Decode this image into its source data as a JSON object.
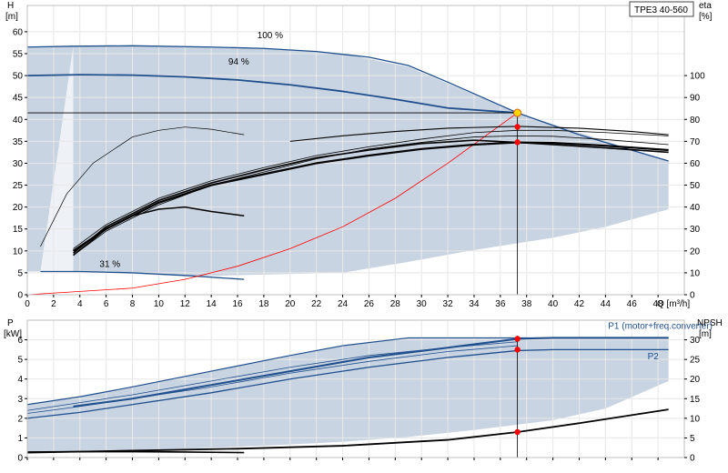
{
  "model_label": "TPE3 40-560",
  "colors": {
    "envelope": "#c8d4e2",
    "blue": "#1f4e8c",
    "black": "#000000",
    "red_curve": "#ff0000",
    "dutypoint": "#ff0000",
    "dutypoint_main": "#ffd700"
  },
  "chart_data": [
    {
      "type": "line",
      "panel": "top",
      "y_left_title": "H",
      "y_left_unit": "[m]",
      "y_right_title": "eta",
      "y_right_unit": "[%]",
      "x_title": "Q [m³/h]",
      "xlim": [
        0,
        50
      ],
      "ylim": [
        0,
        66
      ],
      "y_right_lim": [
        0,
        132
      ],
      "x_ticks": [
        0,
        2,
        4,
        6,
        8,
        10,
        12,
        14,
        16,
        18,
        20,
        22,
        24,
        26,
        28,
        30,
        32,
        34,
        36,
        38,
        40,
        42,
        44,
        46,
        48
      ],
      "y_ticks": [
        0,
        5,
        10,
        15,
        20,
        25,
        30,
        35,
        40,
        45,
        50,
        55,
        60
      ],
      "y_right_ticks": [
        0,
        10,
        20,
        30,
        40,
        50,
        60,
        70,
        80,
        90,
        100
      ],
      "curve_labels": [
        {
          "text": "100 %",
          "x": 17.5,
          "y": 58.5
        },
        {
          "text": "94 %",
          "x": 15.3,
          "y": 52.5
        },
        {
          "text": "31 %",
          "x": 5.5,
          "y": 6.3
        }
      ],
      "series": [
        {
          "role": "envelope",
          "x": [
            0,
            3.5,
            8,
            18,
            24,
            29,
            37.3,
            48.8,
            48.8,
            44,
            40,
            34,
            29,
            24,
            18,
            12,
            4,
            1,
            0
          ],
          "y": [
            56.5,
            56.7,
            56.8,
            56.2,
            55,
            52,
            41.5,
            30.5,
            19.5,
            15.5,
            13,
            10.2,
            7.5,
            5,
            4.6,
            4.2,
            5.3,
            5.3,
            5.3
          ]
        },
        {
          "role": "lightwedge",
          "x": [
            1,
            3.5,
            3.5,
            1
          ],
          "y": [
            5.3,
            56.7,
            5.3,
            5.3
          ]
        },
        {
          "role": "h100",
          "x": [
            0,
            3.5,
            8,
            14,
            18,
            22,
            26,
            29,
            32,
            37.3,
            42,
            48.8
          ],
          "y": [
            56.5,
            56.7,
            56.8,
            56.5,
            56.2,
            55.5,
            54.2,
            52.3,
            48.5,
            41.5,
            36.5,
            30.5
          ]
        },
        {
          "role": "h94",
          "x": [
            0,
            4,
            8,
            12,
            16,
            20,
            24,
            28,
            32,
            37.3
          ],
          "y": [
            50,
            50.2,
            50.1,
            49.7,
            49,
            47.9,
            46.4,
            44.6,
            42.6,
            41.5
          ]
        },
        {
          "role": "h31",
          "x": [
            1,
            4,
            8,
            12,
            16.5
          ],
          "y": [
            5.3,
            5.3,
            5,
            4.4,
            3.5
          ]
        },
        {
          "role": "sysline",
          "x": [
            0,
            8,
            12,
            16,
            20,
            24,
            28,
            32,
            37.3
          ],
          "y": [
            0,
            1.5,
            3.5,
            6.5,
            10.5,
            15.5,
            22,
            30,
            41.5
          ]
        },
        {
          "role": "dutyH",
          "x": [
            0,
            37.3
          ],
          "y": [
            41.5,
            41.5
          ]
        },
        {
          "role": "dutyV",
          "x": [
            37.3,
            37.3
          ],
          "y": [
            0,
            41.5
          ]
        },
        {
          "role": "eta_main",
          "x": [
            3.5,
            6,
            10,
            14,
            18,
            22,
            26,
            30,
            34,
            37.3,
            40,
            44,
            48.8
          ],
          "y": [
            20,
            30,
            42,
            50,
            55,
            60,
            63.5,
            66.5,
            68.5,
            69.5,
            69.3,
            68,
            66
          ]
        },
        {
          "role": "eta_low1",
          "x": [
            3.5,
            6,
            8,
            10,
            12,
            14,
            16.5
          ],
          "y": [
            18,
            30,
            36,
            39,
            40,
            38,
            36
          ]
        },
        {
          "role": "eta_thin1",
          "x": [
            3.5,
            6,
            10,
            14,
            18,
            22,
            26,
            30,
            34,
            37.3,
            40,
            44,
            48.8
          ],
          "y": [
            18,
            29,
            41,
            50,
            56,
            62,
            66.5,
            69.5,
            72,
            72.5,
            72.3,
            70.8,
            68.5
          ]
        },
        {
          "role": "eta_thin2",
          "x": [
            3.5,
            6,
            10,
            14,
            18,
            22,
            26,
            30,
            34,
            37.3,
            40,
            44,
            48.8
          ],
          "y": [
            21,
            32,
            44,
            52,
            58,
            63.5,
            67.5,
            71,
            74,
            75,
            75,
            74,
            72.5
          ]
        },
        {
          "role": "eta_bold_b",
          "x": [
            3.5,
            6,
            10,
            14,
            18,
            22,
            26,
            30,
            34,
            37.3,
            40,
            44,
            48.8
          ],
          "y": [
            19,
            31,
            43,
            51,
            57,
            62.5,
            66,
            69,
            70.5,
            69.5,
            68.5,
            67,
            65
          ]
        },
        {
          "role": "eta_thin_top",
          "x": [
            1,
            3,
            5,
            8,
            10,
            12,
            14,
            16.5
          ],
          "y": [
            22,
            46,
            60,
            72,
            75,
            76.5,
            75.5,
            73
          ]
        },
        {
          "role": "eta_upper",
          "x": [
            20,
            24,
            28,
            32,
            37.3,
            42,
            46,
            48.8
          ],
          "y": [
            70,
            72.5,
            74.5,
            76,
            76.8,
            76,
            74.5,
            73
          ]
        }
      ],
      "duty_points": [
        {
          "x": 37.3,
          "y": 41.5,
          "main": true
        },
        {
          "x": 37.3,
          "y": 38.3
        },
        {
          "x": 37.3,
          "y": 34.8
        }
      ]
    },
    {
      "type": "line",
      "panel": "bottom",
      "y_left_title": "P",
      "y_left_unit": "[kW]",
      "y_right_title": "NPSH",
      "y_right_unit": "[m]",
      "xlim": [
        0,
        50
      ],
      "ylim": [
        0,
        7
      ],
      "y_right_lim": [
        0,
        35
      ],
      "y_ticks": [
        0,
        1,
        2,
        3,
        4,
        5,
        6
      ],
      "y_right_ticks": [
        0,
        5,
        10,
        15,
        20,
        25,
        30
      ],
      "curve_labels": [
        {
          "text": "P1 (motor+freq.converter)",
          "x": 44.2,
          "y": 6.55
        },
        {
          "text": "P2",
          "x": 47.2,
          "y": 5.0
        }
      ],
      "series": [
        {
          "role": "envelope",
          "x": [
            0,
            4,
            8,
            14,
            20,
            24,
            29,
            37.3,
            48.8,
            48.8,
            44,
            40,
            34,
            29,
            24,
            18,
            12,
            8,
            4,
            2,
            0
          ],
          "y": [
            2.7,
            3.1,
            3.6,
            4.4,
            5.2,
            5.7,
            6.1,
            6.1,
            6.1,
            3.9,
            2.5,
            1.9,
            1.4,
            1.05,
            0.8,
            0.6,
            0.45,
            0.35,
            0.3,
            0.25,
            0.25
          ]
        },
        {
          "role": "p_upper",
          "x": [
            0,
            4,
            8,
            14,
            20,
            24,
            29,
            37.3,
            48.8
          ],
          "y": [
            2.7,
            3.1,
            3.6,
            4.4,
            5.2,
            5.7,
            6.1,
            6.1,
            6.1
          ]
        },
        {
          "role": "p1",
          "x": [
            3.5,
            8,
            14,
            20,
            26,
            32,
            37.3,
            40,
            48.8
          ],
          "y": [
            2.6,
            3.0,
            3.7,
            4.4,
            5.1,
            5.6,
            6.05,
            6.1,
            6.1
          ]
        },
        {
          "role": "p1_thin",
          "x": [
            0,
            4,
            8,
            14,
            20,
            26,
            32,
            37.3
          ],
          "y": [
            2.4,
            2.8,
            3.2,
            3.9,
            4.6,
            5.2,
            5.6,
            5.9
          ]
        },
        {
          "role": "p2",
          "x": [
            0,
            4,
            8,
            14,
            20,
            26,
            32,
            37.3,
            40,
            48.8
          ],
          "y": [
            2.0,
            2.3,
            2.7,
            3.3,
            4.0,
            4.6,
            5.1,
            5.45,
            5.5,
            5.5
          ]
        },
        {
          "role": "p2_thin",
          "x": [
            0,
            4,
            8,
            14,
            20,
            26,
            32,
            37.3
          ],
          "y": [
            2.25,
            2.6,
            3.0,
            3.6,
            4.3,
            4.9,
            5.4,
            5.7
          ]
        },
        {
          "role": "p_low",
          "x": [
            0,
            4,
            8,
            12,
            16.5
          ],
          "y": [
            0.28,
            0.3,
            0.3,
            0.28,
            0.25
          ]
        },
        {
          "role": "npsh",
          "x": [
            0,
            8,
            16,
            24,
            32,
            37.3,
            42,
            48.8
          ],
          "y": [
            0.25,
            0.35,
            0.45,
            0.6,
            0.9,
            1.3,
            1.75,
            2.45
          ]
        },
        {
          "role": "dutyV",
          "x": [
            37.3,
            37.3
          ],
          "y": [
            0,
            6.2
          ]
        }
      ],
      "duty_points": [
        {
          "x": 37.3,
          "y": 6.05
        },
        {
          "x": 37.3,
          "y": 5.5
        },
        {
          "x": 37.3,
          "y": 1.3
        }
      ]
    }
  ]
}
